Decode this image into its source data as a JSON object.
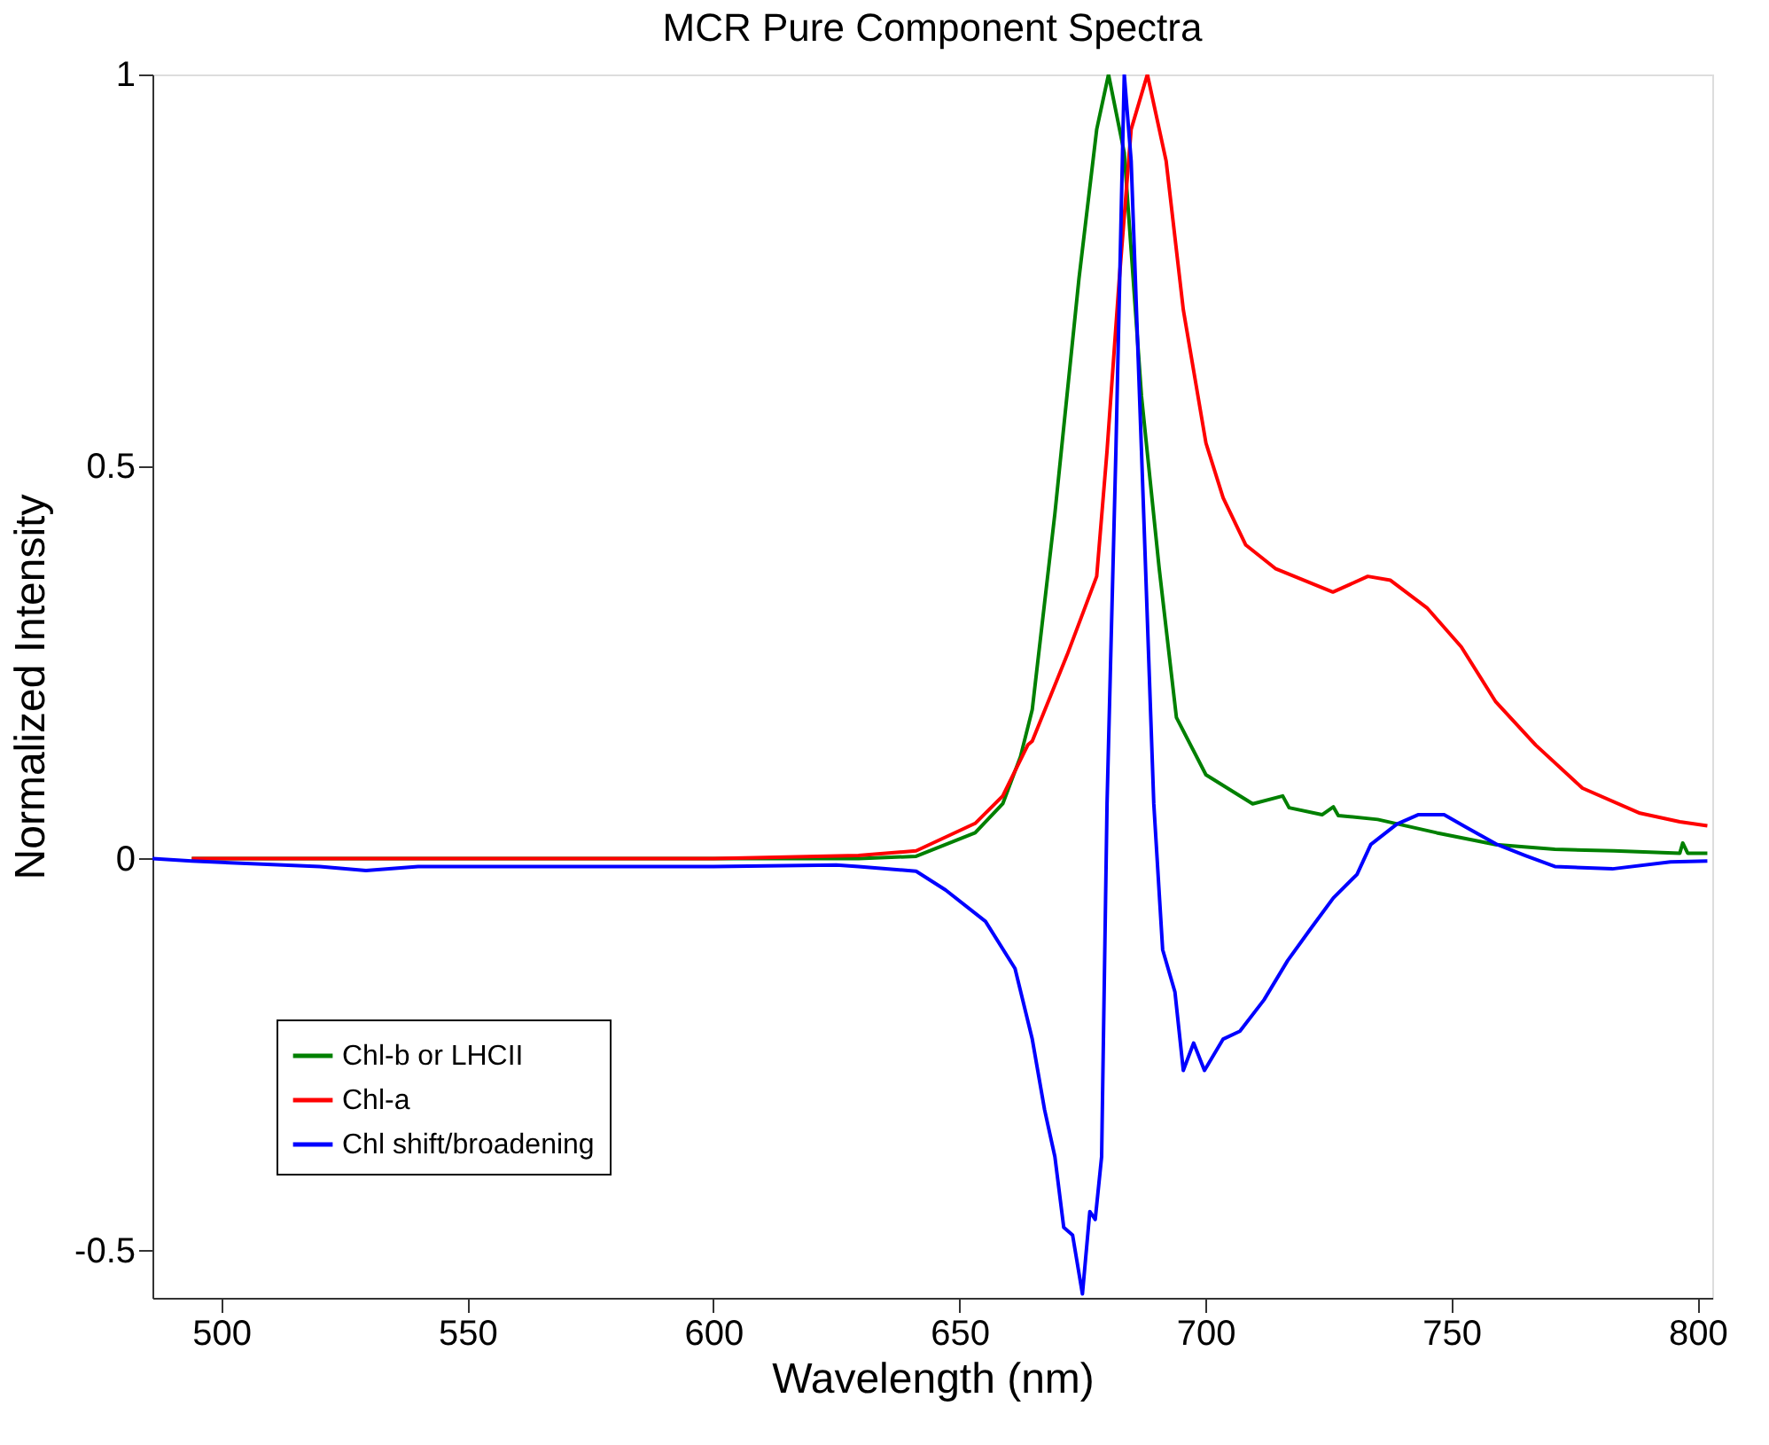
{
  "chart_data": {
    "type": "line",
    "title": "MCR Pure Component Spectra",
    "xlabel": "Wavelength (nm)",
    "ylabel": "Normalized Intensity",
    "xlim": [
      486,
      803
    ],
    "ylim": [
      -0.56,
      1
    ],
    "xticks": [
      500,
      550,
      600,
      650,
      700,
      750,
      800
    ],
    "yticks": [
      -0.5,
      0,
      0.5,
      1
    ],
    "grid": false,
    "legend": "bottom left",
    "marker": "none",
    "line_style": "solid",
    "series": [
      {
        "name": "Chl-b or LHCII",
        "color": "#008000",
        "x": [
          494,
          550,
          600,
          629.5,
          641.2,
          653.2,
          658.8,
          662.4,
          664.8,
          669.4,
          674.3,
          677.9,
          680.3,
          683.5,
          687,
          690.6,
          694.1,
          700.1,
          709.6,
          715.7,
          717,
          723.7,
          726,
          727,
          735,
          747,
          759,
          771,
          783,
          796.4,
          797,
          798,
          802
        ],
        "values": [
          0,
          0,
          0,
          0,
          0.003,
          0.033,
          0.07,
          0.13,
          0.19,
          0.44,
          0.74,
          0.93,
          1,
          0.9,
          0.59,
          0.37,
          0.18,
          0.107,
          0.07,
          0.08,
          0.065,
          0.056,
          0.066,
          0.055,
          0.05,
          0.033,
          0.018,
          0.012,
          0.01,
          0.007,
          0.02,
          0.007,
          0.007
        ]
      },
      {
        "name": "Chl-a",
        "color": "#ff0000",
        "x": [
          494,
          550,
          600,
          629.5,
          641.2,
          653.2,
          658.8,
          663.9,
          664.8,
          671.9,
          677.9,
          680,
          682.5,
          684.9,
          688.2,
          692,
          695.5,
          700.1,
          703.6,
          708.2,
          714.2,
          725.9,
          733,
          737.6,
          745,
          752,
          759,
          767.1,
          776.6,
          788.3,
          796.4,
          802
        ],
        "values": [
          0,
          0,
          0,
          0.004,
          0.01,
          0.045,
          0.08,
          0.145,
          0.15,
          0.26,
          0.36,
          0.52,
          0.74,
          0.93,
          1,
          0.89,
          0.7,
          0.53,
          0.46,
          0.4,
          0.37,
          0.34,
          0.36,
          0.355,
          0.32,
          0.27,
          0.2,
          0.145,
          0.09,
          0.058,
          0.047,
          0.042
        ]
      },
      {
        "name": "Chl shift/broadening",
        "color": "#0000ff",
        "x": [
          486,
          494,
          520,
          529.4,
          540,
          600,
          625,
          629.5,
          641.2,
          647.2,
          655.3,
          661.3,
          664.8,
          667.3,
          669.4,
          671.2,
          673,
          675,
          676.5,
          677.6,
          678.9,
          680,
          681.8,
          683.5,
          684.9,
          687,
          689.5,
          691.3,
          693.8,
          695.5,
          697.6,
          699.8,
          703.6,
          707,
          711.9,
          716.7,
          721.3,
          726,
          730.8,
          733.6,
          738.9,
          743.2,
          748.5,
          753,
          759.3,
          765,
          771,
          782.7,
          794.5,
          802
        ],
        "values": [
          0,
          -0.003,
          -0.01,
          -0.015,
          -0.01,
          -0.01,
          -0.008,
          -0.01,
          -0.016,
          -0.04,
          -0.08,
          -0.14,
          -0.23,
          -0.32,
          -0.38,
          -0.47,
          -0.48,
          -0.555,
          -0.45,
          -0.46,
          -0.38,
          0.07,
          0.52,
          1,
          0.89,
          0.52,
          0.07,
          -0.116,
          -0.17,
          -0.27,
          -0.235,
          -0.27,
          -0.23,
          -0.22,
          -0.18,
          -0.13,
          -0.09,
          -0.05,
          -0.02,
          0.018,
          0.044,
          0.056,
          0.056,
          0.04,
          0.018,
          0.004,
          -0.01,
          -0.013,
          -0.004,
          -0.003
        ]
      }
    ]
  }
}
